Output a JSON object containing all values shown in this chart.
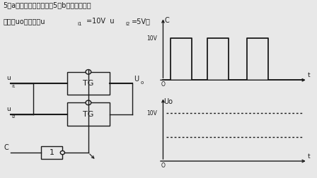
{
  "bg_color": "#e8e8e8",
  "line_color": "#1a1a1a",
  "title1": "5（a）所示，试画出在图5（b）波形作用下",
  "title2_pre": "的输出uo的波形（u",
  "title2_sub1": "i1",
  "title2_mid": "=10V  u",
  "title2_sub2": "i2",
  "title2_end": "=5V）",
  "lw": 1.0
}
